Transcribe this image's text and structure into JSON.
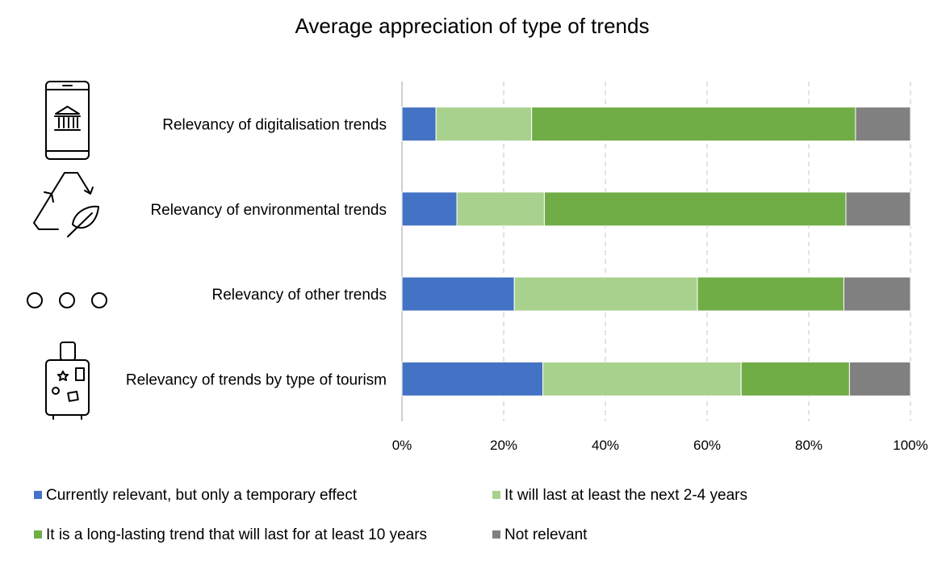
{
  "chart_data": {
    "type": "bar",
    "orientation": "horizontal",
    "stacked": "percent",
    "title": "Average appreciation of type of trends",
    "categories": [
      "Relevancy of digitalisation trends",
      "Relevancy of environmental trends",
      "Relevancy of other trends",
      "Relevancy of trends by type of tourism"
    ],
    "series": [
      {
        "name": "Currently relevant, but only a temporary effect",
        "color": "#4472C4",
        "values": [
          6.7,
          10.8,
          22.1,
          27.7
        ]
      },
      {
        "name": "It will last at least the next 2-4 years",
        "color": "#A9D18E",
        "values": [
          18.8,
          17.2,
          36.0,
          39.0
        ]
      },
      {
        "name": "It is a long-lasting trend that will last for at least 10 years",
        "color": "#70AD47",
        "values": [
          63.7,
          59.3,
          28.8,
          21.3
        ]
      },
      {
        "name": "Not relevant",
        "color": "#808080",
        "values": [
          10.8,
          12.7,
          13.1,
          12.0
        ]
      }
    ],
    "xlim": [
      0,
      100
    ],
    "xticks": [
      "0%",
      "20%",
      "40%",
      "60%",
      "80%",
      "100%"
    ],
    "grid": "vertical-dashed",
    "legend_position": "bottom",
    "category_icons": [
      "mobile-bank-icon",
      "recycle-leaf-icon",
      "three-circles-icon",
      "suitcase-icon"
    ]
  }
}
